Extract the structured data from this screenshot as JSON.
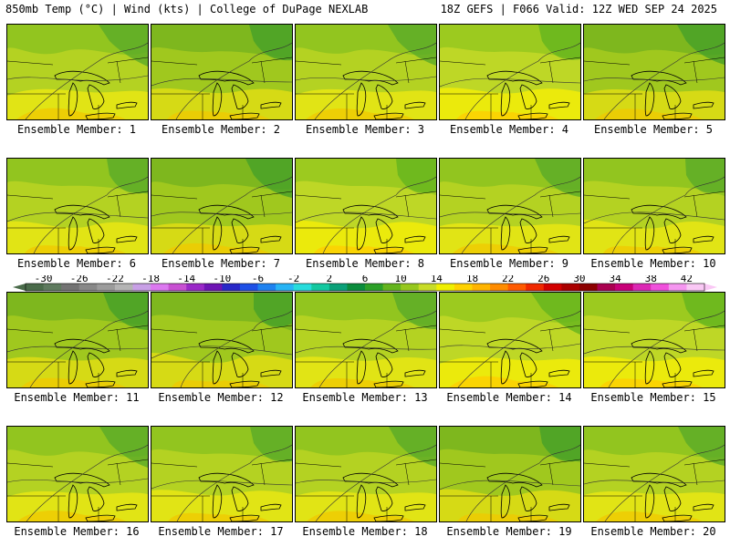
{
  "header": {
    "left": "850mb Temp (°C) | Wind (kts) | College of DuPage NEXLAB",
    "right": "18Z GEFS | F066 Valid: 12Z WED SEP 24 2025"
  },
  "members": [
    {
      "label": "Ensemble Member: 1",
      "tint": 0
    },
    {
      "label": "Ensemble Member: 2",
      "tint": 1
    },
    {
      "label": "Ensemble Member: 3",
      "tint": 0
    },
    {
      "label": "Ensemble Member: 4",
      "tint": 2
    },
    {
      "label": "Ensemble Member: 5",
      "tint": 1
    },
    {
      "label": "Ensemble Member: 6",
      "tint": 0
    },
    {
      "label": "Ensemble Member: 7",
      "tint": 1
    },
    {
      "label": "Ensemble Member: 8",
      "tint": 2
    },
    {
      "label": "Ensemble Member: 9",
      "tint": 0
    },
    {
      "label": "Ensemble Member: 10",
      "tint": 0
    },
    {
      "label": "Ensemble Member: 11",
      "tint": 1
    },
    {
      "label": "Ensemble Member: 12",
      "tint": 1
    },
    {
      "label": "Ensemble Member: 13",
      "tint": 0
    },
    {
      "label": "Ensemble Member: 14",
      "tint": 2
    },
    {
      "label": "Ensemble Member: 15",
      "tint": 2
    },
    {
      "label": "Ensemble Member: 16",
      "tint": 0
    },
    {
      "label": "Ensemble Member: 17",
      "tint": 0
    },
    {
      "label": "Ensemble Member: 18",
      "tint": 0
    },
    {
      "label": "Ensemble Member: 19",
      "tint": 1
    },
    {
      "label": "Ensemble Member: 20",
      "tint": 0
    }
  ],
  "colorbar": {
    "ticks": [
      "-30",
      "-26",
      "-22",
      "-18",
      "-14",
      "-10",
      "-6",
      "-2",
      "2",
      "6",
      "10",
      "14",
      "18",
      "22",
      "26",
      "30",
      "34",
      "38",
      "42"
    ],
    "colors": [
      "#4a6b4a",
      "#5e7a5e",
      "#737373",
      "#888888",
      "#9c9c9c",
      "#b4b4b4",
      "#c8a0e6",
      "#dc78f0",
      "#c850d2",
      "#9a28c8",
      "#6e14b4",
      "#2828c8",
      "#1e50e6",
      "#1e82f0",
      "#28b4f5",
      "#28dcdc",
      "#14c8a0",
      "#0aa078",
      "#0a8c3c",
      "#2ca028",
      "#64b41e",
      "#96c81e",
      "#c8dc28",
      "#f0f000",
      "#ffd200",
      "#ffb400",
      "#ff8c00",
      "#ff5a00",
      "#f02800",
      "#d20000",
      "#aa0000",
      "#8c0000",
      "#aa0050",
      "#c80078",
      "#dc28b4",
      "#f050dc",
      "#f596f0",
      "#fac8f5"
    ]
  }
}
